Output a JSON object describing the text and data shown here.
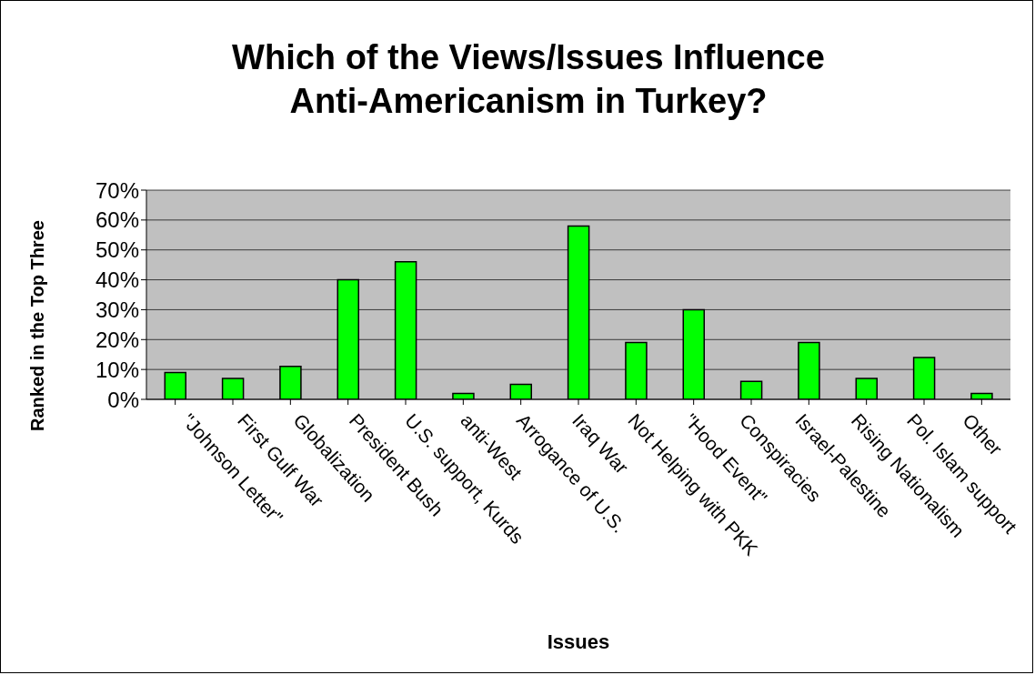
{
  "chart_data": {
    "type": "bar",
    "title": "Which of the Views/Issues Influence Anti-Americanism in Turkey?",
    "xlabel": "Issues",
    "ylabel": "Ranked in the Top Three",
    "categories": [
      "\"Johnson Letter\"",
      "First Gulf War",
      "Globalization",
      "President Bush",
      "U.S. support, Kurds",
      "anti-West",
      "Arrogance of U.S.",
      "Iraq War",
      "Not Helping with PKK",
      "\"Hood Event\"",
      "Conspiracies",
      "Israel-Palestine",
      "Rising Nationalism",
      "Pol. Islam support",
      "Other"
    ],
    "values": [
      9,
      7,
      11,
      40,
      46,
      2,
      5,
      58,
      19,
      30,
      6,
      19,
      7,
      14,
      2
    ],
    "color": "#00ff00",
    "ylim": [
      0,
      70
    ],
    "yticks": [
      {
        "value": 0,
        "label": "0%"
      },
      {
        "value": 10,
        "label": "10%"
      },
      {
        "value": 20,
        "label": "20%"
      },
      {
        "value": 30,
        "label": "30%"
      },
      {
        "value": 40,
        "label": "40%"
      },
      {
        "value": 50,
        "label": "50%"
      },
      {
        "value": 60,
        "label": "60%"
      },
      {
        "value": 70,
        "label": "70%"
      }
    ],
    "grid": "y",
    "legend": false
  }
}
